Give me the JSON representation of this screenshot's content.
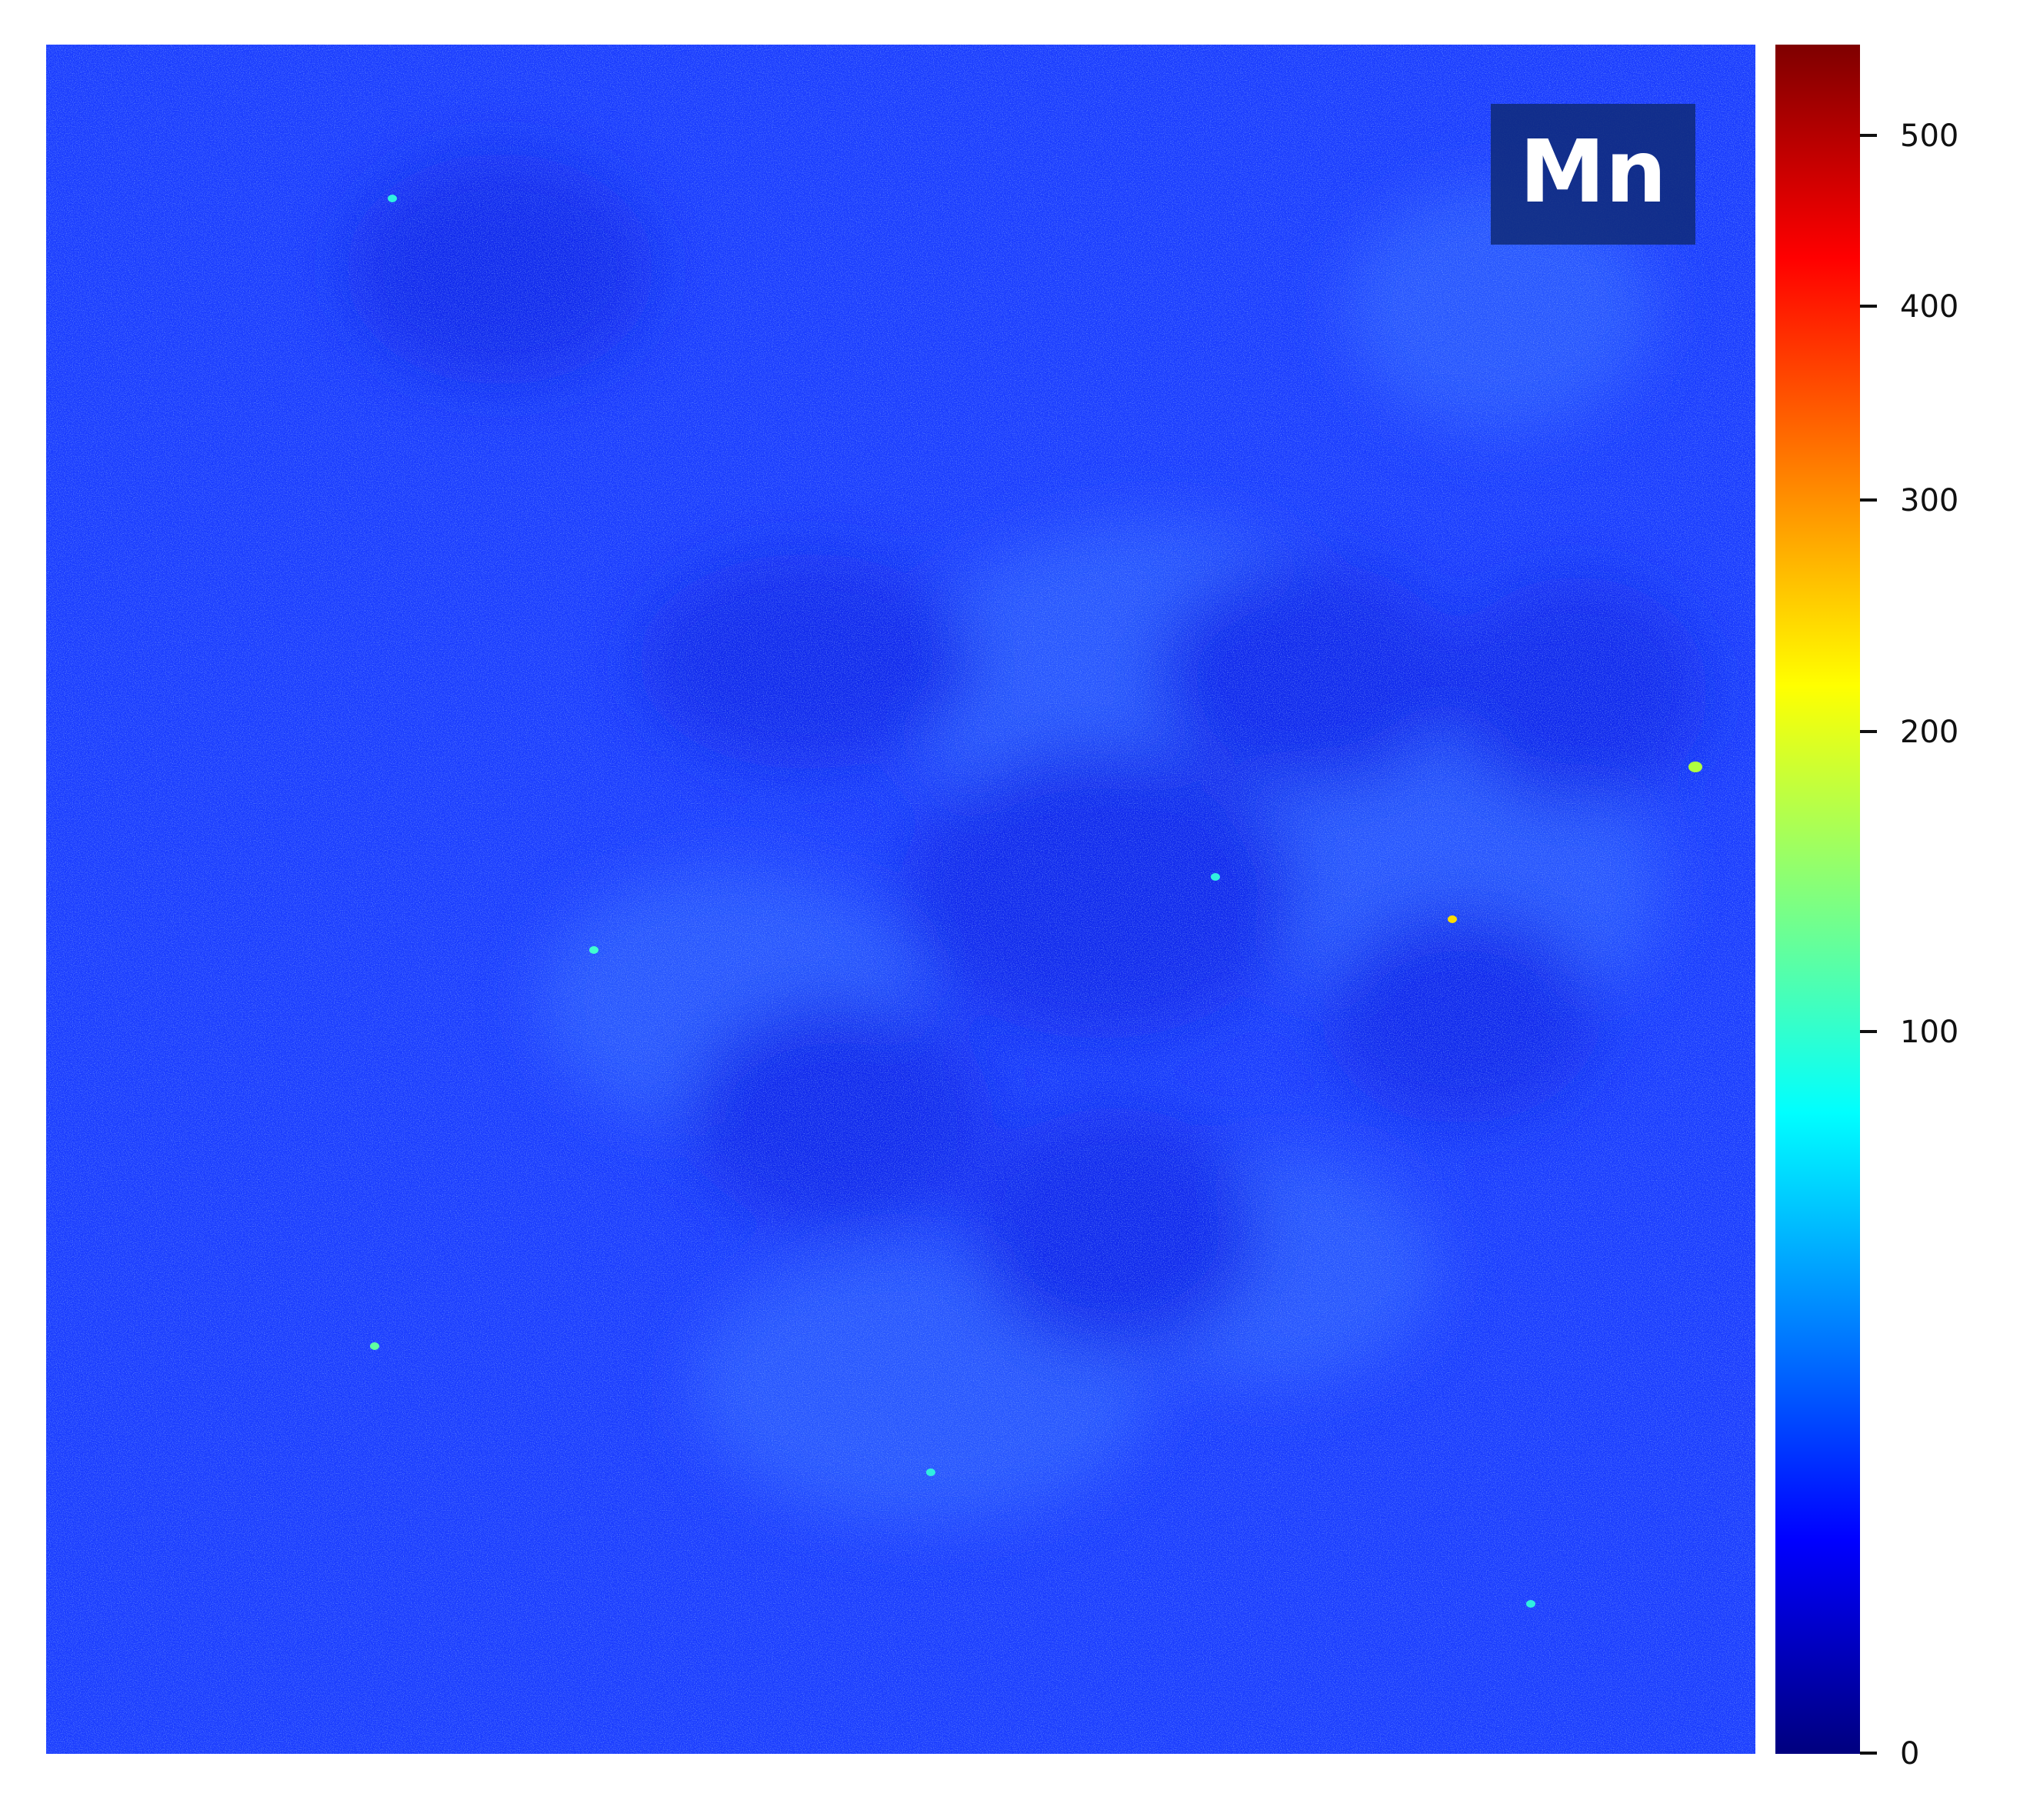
{
  "chart_data": {
    "type": "heatmap",
    "title": "",
    "xlabel": "",
    "ylabel": "",
    "grid": false,
    "axes_visible": false,
    "map_label": "Mn",
    "map_label_position": "top-right",
    "colormap": "jet",
    "colorbar": {
      "position": "right",
      "vmin": 0,
      "vmax": 540,
      "scale": "nonlinear",
      "ticks": [
        {
          "value": 0,
          "label": "0"
        },
        {
          "value": 100,
          "label": "100"
        },
        {
          "value": 200,
          "label": "200"
        },
        {
          "value": 300,
          "label": "300"
        },
        {
          "value": 400,
          "label": "400"
        },
        {
          "value": 500,
          "label": "500"
        }
      ]
    },
    "background_level": 40,
    "background_color": "#1a3cff",
    "hotspots": [
      {
        "value": 180,
        "color": "#b0ff40"
      },
      {
        "value": 250,
        "color": "#ffdd00"
      },
      {
        "value": 140,
        "color": "#60ffa0"
      },
      {
        "value": 120,
        "color": "#40ffd0"
      },
      {
        "value": 110,
        "color": "#30f0e0"
      }
    ]
  },
  "colors": {
    "label_box": "#0f2a78",
    "label_text": "#ffffff",
    "map_base": "#1a3cff",
    "map_light": "#2f63ff",
    "map_dark": "#0c22e6"
  }
}
